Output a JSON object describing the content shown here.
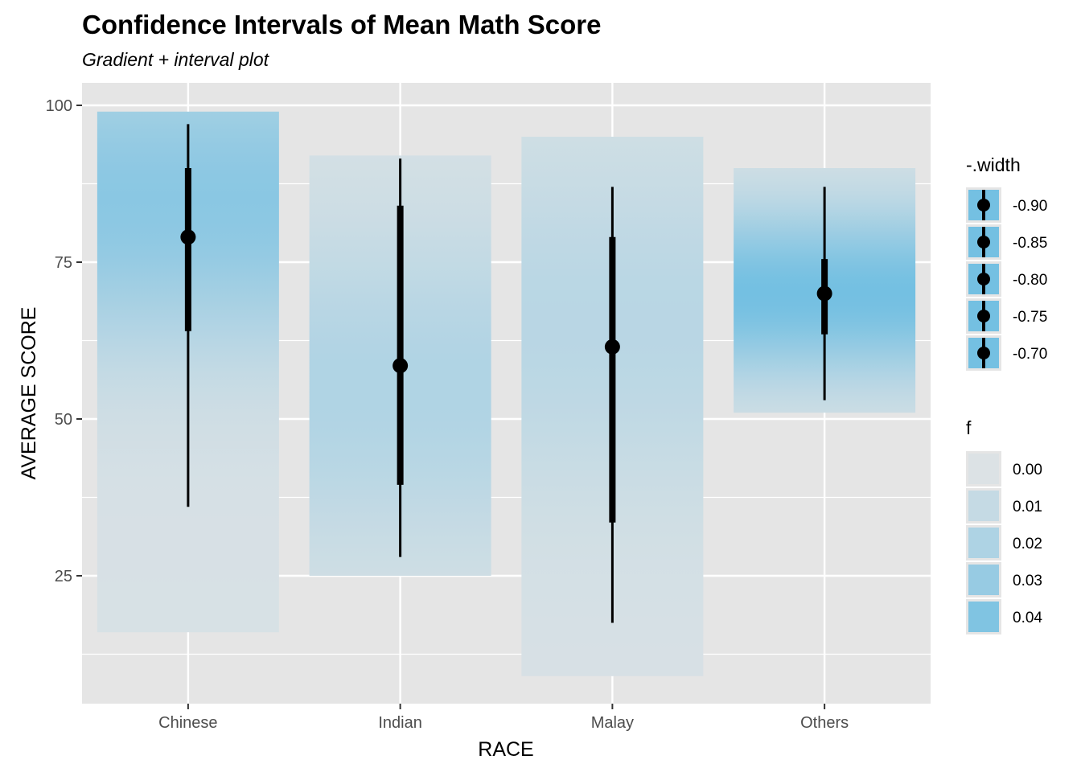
{
  "chart_data": {
    "type": "interval",
    "title": "Confidence Intervals of Mean Math Score",
    "subtitle": "Gradient + interval plot",
    "xlabel": "RACE",
    "ylabel": "AVERAGE SCORE",
    "ylim": [
      6,
      102
    ],
    "yticks": [
      25,
      50,
      75,
      100
    ],
    "grid": true,
    "categories": [
      "Chinese",
      "Indian",
      "Malay",
      "Others"
    ],
    "series": [
      {
        "category": "Chinese",
        "point": 79,
        "thick": [
          64,
          90
        ],
        "thin": [
          36,
          97
        ],
        "band": [
          16,
          99
        ],
        "peak": 85,
        "peak_f": 0.035
      },
      {
        "category": "Indian",
        "point": 58.5,
        "thick": [
          39.5,
          84
        ],
        "thin": [
          28,
          91.5
        ],
        "band": [
          25,
          92
        ],
        "peak": 55,
        "peak_f": 0.018
      },
      {
        "category": "Malay",
        "point": 61.5,
        "thick": [
          33.5,
          79
        ],
        "thin": [
          17.5,
          87
        ],
        "band": [
          9,
          95
        ],
        "peak": 65,
        "peak_f": 0.014
      },
      {
        "category": "Others",
        "point": 70,
        "thick": [
          63.5,
          75.5
        ],
        "thin": [
          53,
          87
        ],
        "band": [
          51,
          90
        ],
        "peak": 70,
        "peak_f": 0.045
      }
    ],
    "legend_width": {
      "title": "-.width",
      "entries": [
        "-0.90",
        "-0.85",
        "-0.80",
        "-0.75",
        "-0.70"
      ],
      "placement": "right"
    },
    "legend_f": {
      "title": "f",
      "entries": [
        "0.00",
        "0.01",
        "0.02",
        "0.03",
        "0.04"
      ],
      "placement": "right"
    },
    "colors": {
      "panel": "#e5e5e5",
      "grid": "#ffffff",
      "fill_max": "#74c0e2",
      "interval": "#000000"
    }
  }
}
